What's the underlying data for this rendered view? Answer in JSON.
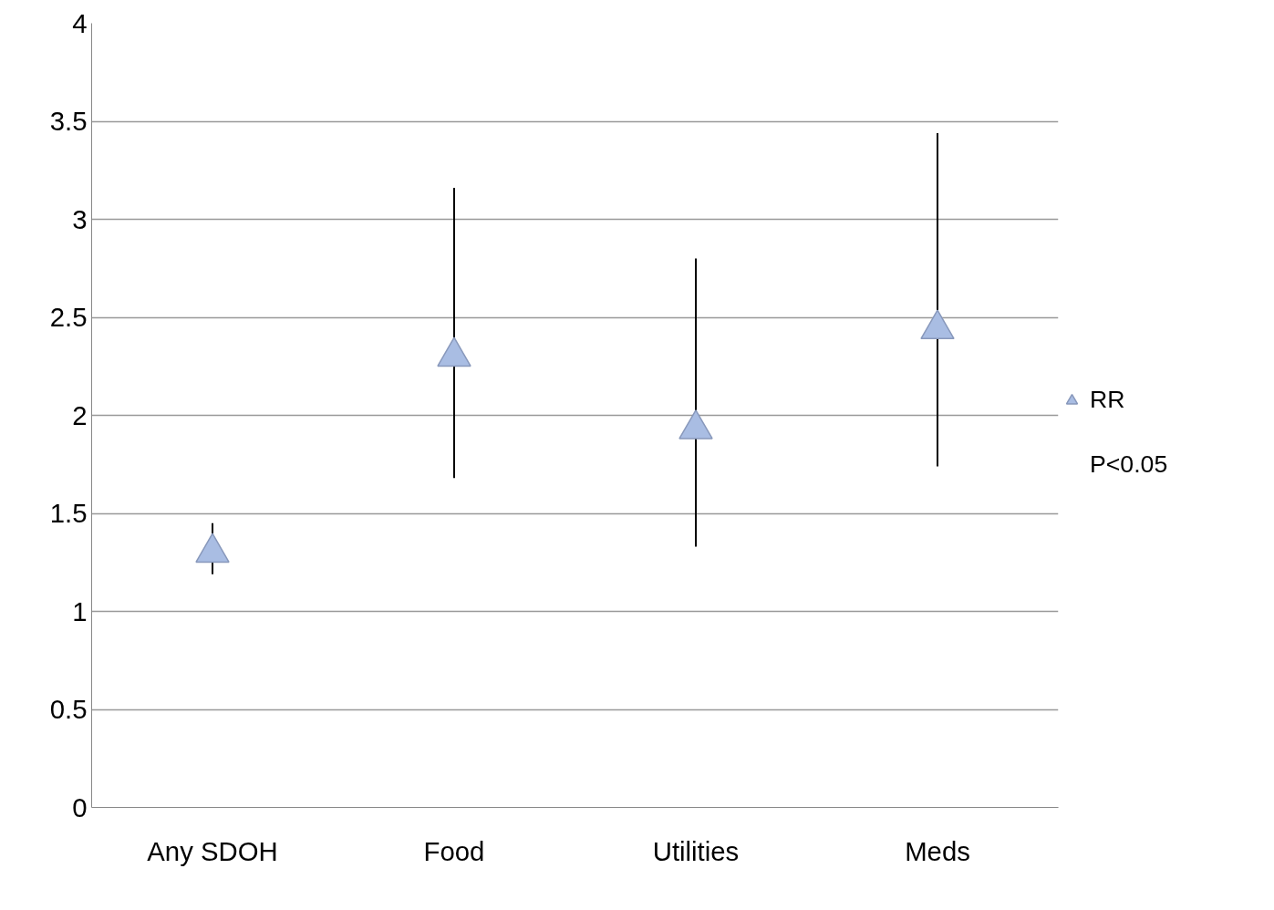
{
  "chart_data": {
    "type": "scatter",
    "categories": [
      "Any SDOH",
      "Food",
      "Utilities",
      "Meds"
    ],
    "series": [
      {
        "name": "RR",
        "color": "#a9bde3",
        "values": [
          1.3,
          2.3,
          1.93,
          2.44
        ],
        "errors": [
          [
            1.19,
            1.45
          ],
          [
            1.68,
            3.16
          ],
          [
            1.33,
            2.8
          ],
          [
            1.74,
            3.44
          ]
        ]
      }
    ],
    "ylim": [
      0,
      4
    ],
    "yticks": [
      0,
      0.5,
      1,
      1.5,
      2,
      2.5,
      3,
      3.5,
      4
    ],
    "grid": "y",
    "legend": "right",
    "marker": "triangle",
    "annotations": [
      "P<0.05"
    ]
  }
}
